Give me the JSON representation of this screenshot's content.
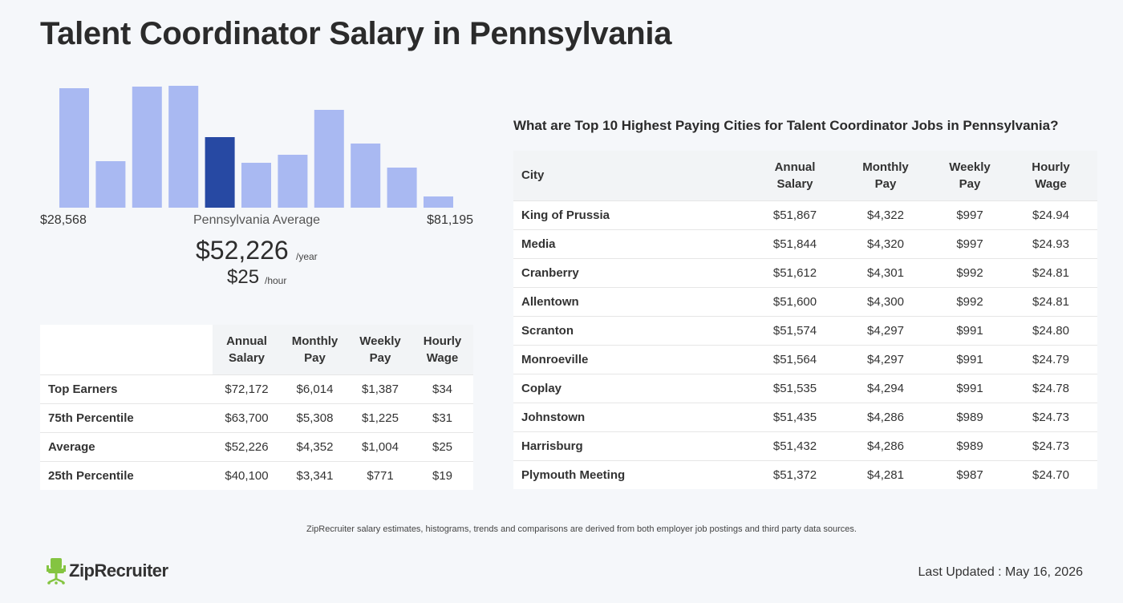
{
  "page": {
    "title": "Talent Coordinator Salary in Pennsylvania"
  },
  "chart_data": {
    "type": "bar",
    "values": [
      149,
      58,
      151,
      152,
      88,
      56,
      66,
      122,
      80,
      50,
      14
    ],
    "highlight_index": 4,
    "colors": {
      "bar": "#a9b9f2",
      "highlight": "#2749a3"
    },
    "min_label": "$28,568",
    "max_label": "$81,195",
    "average_label": "Pennsylvania Average"
  },
  "average": {
    "yearly": "$52,226",
    "yearly_unit": "/year",
    "hourly": "$25",
    "hourly_unit": "/hour"
  },
  "percentile_table": {
    "headers": [
      [
        "Annual",
        "Salary"
      ],
      [
        "Monthly",
        "Pay"
      ],
      [
        "Weekly",
        "Pay"
      ],
      [
        "Hourly",
        "Wage"
      ]
    ],
    "rows": [
      {
        "label": "Top Earners",
        "annual": "$72,172",
        "monthly": "$6,014",
        "weekly": "$1,387",
        "hourly": "$34"
      },
      {
        "label": "75th Percentile",
        "annual": "$63,700",
        "monthly": "$5,308",
        "weekly": "$1,225",
        "hourly": "$31"
      },
      {
        "label": "Average",
        "annual": "$52,226",
        "monthly": "$4,352",
        "weekly": "$1,004",
        "hourly": "$25"
      },
      {
        "label": "25th Percentile",
        "annual": "$40,100",
        "monthly": "$3,341",
        "weekly": "$771",
        "hourly": "$19"
      }
    ]
  },
  "cities": {
    "heading": "What are Top 10 Highest Paying Cities for Talent Coordinator Jobs in Pennsylvania?",
    "headers": {
      "city": "City",
      "annual": [
        "Annual",
        "Salary"
      ],
      "monthly": [
        "Monthly",
        "Pay"
      ],
      "weekly": [
        "Weekly",
        "Pay"
      ],
      "hourly": [
        "Hourly",
        "Wage"
      ]
    },
    "rows": [
      {
        "city": "King of Prussia",
        "annual": "$51,867",
        "monthly": "$4,322",
        "weekly": "$997",
        "hourly": "$24.94"
      },
      {
        "city": "Media",
        "annual": "$51,844",
        "monthly": "$4,320",
        "weekly": "$997",
        "hourly": "$24.93"
      },
      {
        "city": "Cranberry",
        "annual": "$51,612",
        "monthly": "$4,301",
        "weekly": "$992",
        "hourly": "$24.81"
      },
      {
        "city": "Allentown",
        "annual": "$51,600",
        "monthly": "$4,300",
        "weekly": "$992",
        "hourly": "$24.81"
      },
      {
        "city": "Scranton",
        "annual": "$51,574",
        "monthly": "$4,297",
        "weekly": "$991",
        "hourly": "$24.80"
      },
      {
        "city": "Monroeville",
        "annual": "$51,564",
        "monthly": "$4,297",
        "weekly": "$991",
        "hourly": "$24.79"
      },
      {
        "city": "Coplay",
        "annual": "$51,535",
        "monthly": "$4,294",
        "weekly": "$991",
        "hourly": "$24.78"
      },
      {
        "city": "Johnstown",
        "annual": "$51,435",
        "monthly": "$4,286",
        "weekly": "$989",
        "hourly": "$24.73"
      },
      {
        "city": "Harrisburg",
        "annual": "$51,432",
        "monthly": "$4,286",
        "weekly": "$989",
        "hourly": "$24.73"
      },
      {
        "city": "Plymouth Meeting",
        "annual": "$51,372",
        "monthly": "$4,281",
        "weekly": "$987",
        "hourly": "$24.70"
      }
    ]
  },
  "footer": {
    "disclaimer": "ZipRecruiter salary estimates, histograms, trends and comparisons are derived from both employer job postings and third party data sources.",
    "logo_text": "ZipRecruiter",
    "logo_icon": "chair-mascot-icon",
    "last_updated": "Last Updated : May 16, 2026",
    "brand_color": "#84c441"
  }
}
